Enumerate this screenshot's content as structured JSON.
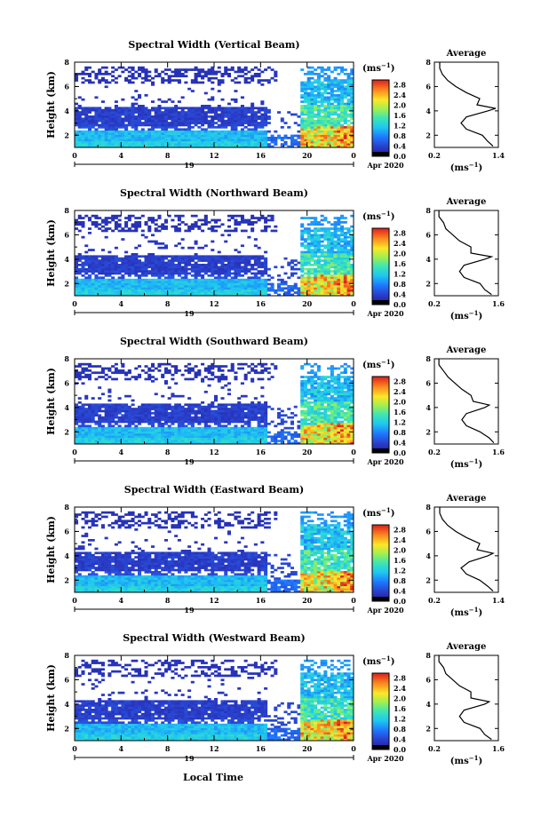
{
  "figure": {
    "common_xlabel": "Local Time",
    "date_day": "19",
    "date_month_year": "Apr 2020",
    "unit_label": "(ms",
    "unit_sup": "−1",
    "unit_close": ")"
  },
  "chart_data": [
    {
      "type": "heatmap",
      "title": "Spectral Width (Vertical Beam)",
      "ylabel": "Height (km)",
      "x_ticks": [
        "0",
        "4",
        "8",
        "12",
        "16",
        "20",
        "0"
      ],
      "y_ticks": [
        "2",
        "4",
        "6",
        "8"
      ],
      "xlim": [
        0,
        24
      ],
      "ylim": [
        1,
        8
      ],
      "colorbar_ticks": [
        "0.0",
        "0.4",
        "0.8",
        "1.2",
        "1.6",
        "2.0",
        "2.4",
        "2.8"
      ],
      "colorbar_range": [
        0,
        3.0
      ],
      "profile": {
        "title": "Average",
        "x_ticks": [
          "0.2",
          "1.4"
        ],
        "xlim": [
          0.2,
          1.4
        ],
        "heights": [
          1.1,
          1.5,
          2.0,
          2.5,
          3.0,
          3.5,
          4.0,
          4.2,
          4.5,
          5.0,
          5.5,
          6.0,
          6.5,
          7.0,
          7.5,
          8.0
        ],
        "values": [
          1.3,
          1.2,
          1.1,
          0.8,
          0.7,
          0.8,
          1.2,
          1.35,
          1.0,
          1.05,
          0.8,
          0.6,
          0.45,
          0.35,
          0.3,
          0.3
        ]
      }
    },
    {
      "type": "heatmap",
      "title": "Spectral Width (Northward Beam)",
      "ylabel": "Height (km)",
      "x_ticks": [
        "0",
        "4",
        "8",
        "12",
        "16",
        "20",
        "0"
      ],
      "y_ticks": [
        "2",
        "4",
        "6",
        "8"
      ],
      "xlim": [
        0,
        24
      ],
      "ylim": [
        1,
        8
      ],
      "colorbar_ticks": [
        "0.0",
        "0.4",
        "0.8",
        "1.2",
        "1.6",
        "2.0",
        "2.4",
        "2.8"
      ],
      "colorbar_range": [
        0,
        3.0
      ],
      "profile": {
        "title": "Average",
        "x_ticks": [
          "0.2",
          "1.6"
        ],
        "xlim": [
          0.2,
          1.6
        ],
        "heights": [
          1.1,
          1.5,
          2.0,
          2.5,
          3.0,
          3.5,
          4.0,
          4.2,
          4.5,
          5.0,
          5.5,
          6.0,
          6.5,
          7.0,
          7.5,
          8.0
        ],
        "values": [
          1.45,
          1.3,
          1.2,
          0.85,
          0.75,
          0.85,
          1.3,
          1.45,
          1.0,
          1.0,
          0.75,
          0.6,
          0.45,
          0.4,
          0.3,
          0.3
        ]
      }
    },
    {
      "type": "heatmap",
      "title": "Spectral Width (Southward Beam)",
      "ylabel": "Height (km)",
      "x_ticks": [
        "0",
        "4",
        "8",
        "12",
        "16",
        "20",
        "0"
      ],
      "y_ticks": [
        "2",
        "4",
        "6",
        "8"
      ],
      "xlim": [
        0,
        24
      ],
      "ylim": [
        1,
        8
      ],
      "colorbar_ticks": [
        "0.0",
        "0.4",
        "0.8",
        "1.2",
        "1.6",
        "2.0",
        "2.4",
        "2.8"
      ],
      "colorbar_range": [
        0,
        3.0
      ],
      "profile": {
        "title": "Average",
        "x_ticks": [
          "0.2",
          "1.6"
        ],
        "xlim": [
          0.2,
          1.6
        ],
        "heights": [
          1.1,
          1.5,
          2.0,
          2.5,
          3.0,
          3.5,
          4.0,
          4.2,
          4.5,
          5.0,
          5.5,
          6.0,
          6.5,
          7.0,
          7.5,
          8.0
        ],
        "values": [
          1.5,
          1.4,
          1.2,
          0.9,
          0.8,
          0.9,
          1.3,
          1.4,
          1.05,
          1.0,
          0.8,
          0.65,
          0.5,
          0.4,
          0.3,
          0.3
        ]
      }
    },
    {
      "type": "heatmap",
      "title": "Spectral Width (Eastward Beam)",
      "ylabel": "Height (km)",
      "x_ticks": [
        "0",
        "4",
        "8",
        "12",
        "16",
        "20",
        "0"
      ],
      "y_ticks": [
        "2",
        "4",
        "6",
        "8"
      ],
      "xlim": [
        0,
        24
      ],
      "ylim": [
        1,
        8
      ],
      "colorbar_ticks": [
        "0.0",
        "0.4",
        "0.8",
        "1.2",
        "1.6",
        "2.0",
        "2.4",
        "2.8"
      ],
      "colorbar_range": [
        0,
        3.0
      ],
      "profile": {
        "title": "Average",
        "x_ticks": [
          "0.2",
          "1.4"
        ],
        "xlim": [
          0.2,
          1.4
        ],
        "heights": [
          1.1,
          1.5,
          2.0,
          2.5,
          3.0,
          3.5,
          4.0,
          4.2,
          4.5,
          5.0,
          5.5,
          6.0,
          6.5,
          7.0,
          7.5,
          8.0
        ],
        "values": [
          1.3,
          1.2,
          1.05,
          0.8,
          0.7,
          0.85,
          1.2,
          1.3,
          1.0,
          1.05,
          0.8,
          0.6,
          0.45,
          0.35,
          0.3,
          0.3
        ]
      }
    },
    {
      "type": "heatmap",
      "title": "Spectral Width (Westward Beam)",
      "ylabel": "Height (km)",
      "x_ticks": [
        "0",
        "4",
        "8",
        "12",
        "16",
        "20",
        "0"
      ],
      "y_ticks": [
        "2",
        "4",
        "6",
        "8"
      ],
      "xlim": [
        0,
        24
      ],
      "ylim": [
        1,
        8
      ],
      "colorbar_ticks": [
        "0.0",
        "0.4",
        "0.8",
        "1.2",
        "1.6",
        "2.0",
        "2.4",
        "2.8"
      ],
      "colorbar_range": [
        0,
        3.0
      ],
      "profile": {
        "title": "Average",
        "x_ticks": [
          "0.2",
          "1.6"
        ],
        "xlim": [
          0.2,
          1.6
        ],
        "heights": [
          1.1,
          1.5,
          2.0,
          2.5,
          3.0,
          3.5,
          4.0,
          4.2,
          4.5,
          5.0,
          5.5,
          6.0,
          6.5,
          7.0,
          7.5,
          8.0
        ],
        "values": [
          1.45,
          1.3,
          1.2,
          0.85,
          0.75,
          0.85,
          1.3,
          1.4,
          1.0,
          1.0,
          0.75,
          0.6,
          0.45,
          0.4,
          0.3,
          0.3
        ]
      }
    }
  ]
}
